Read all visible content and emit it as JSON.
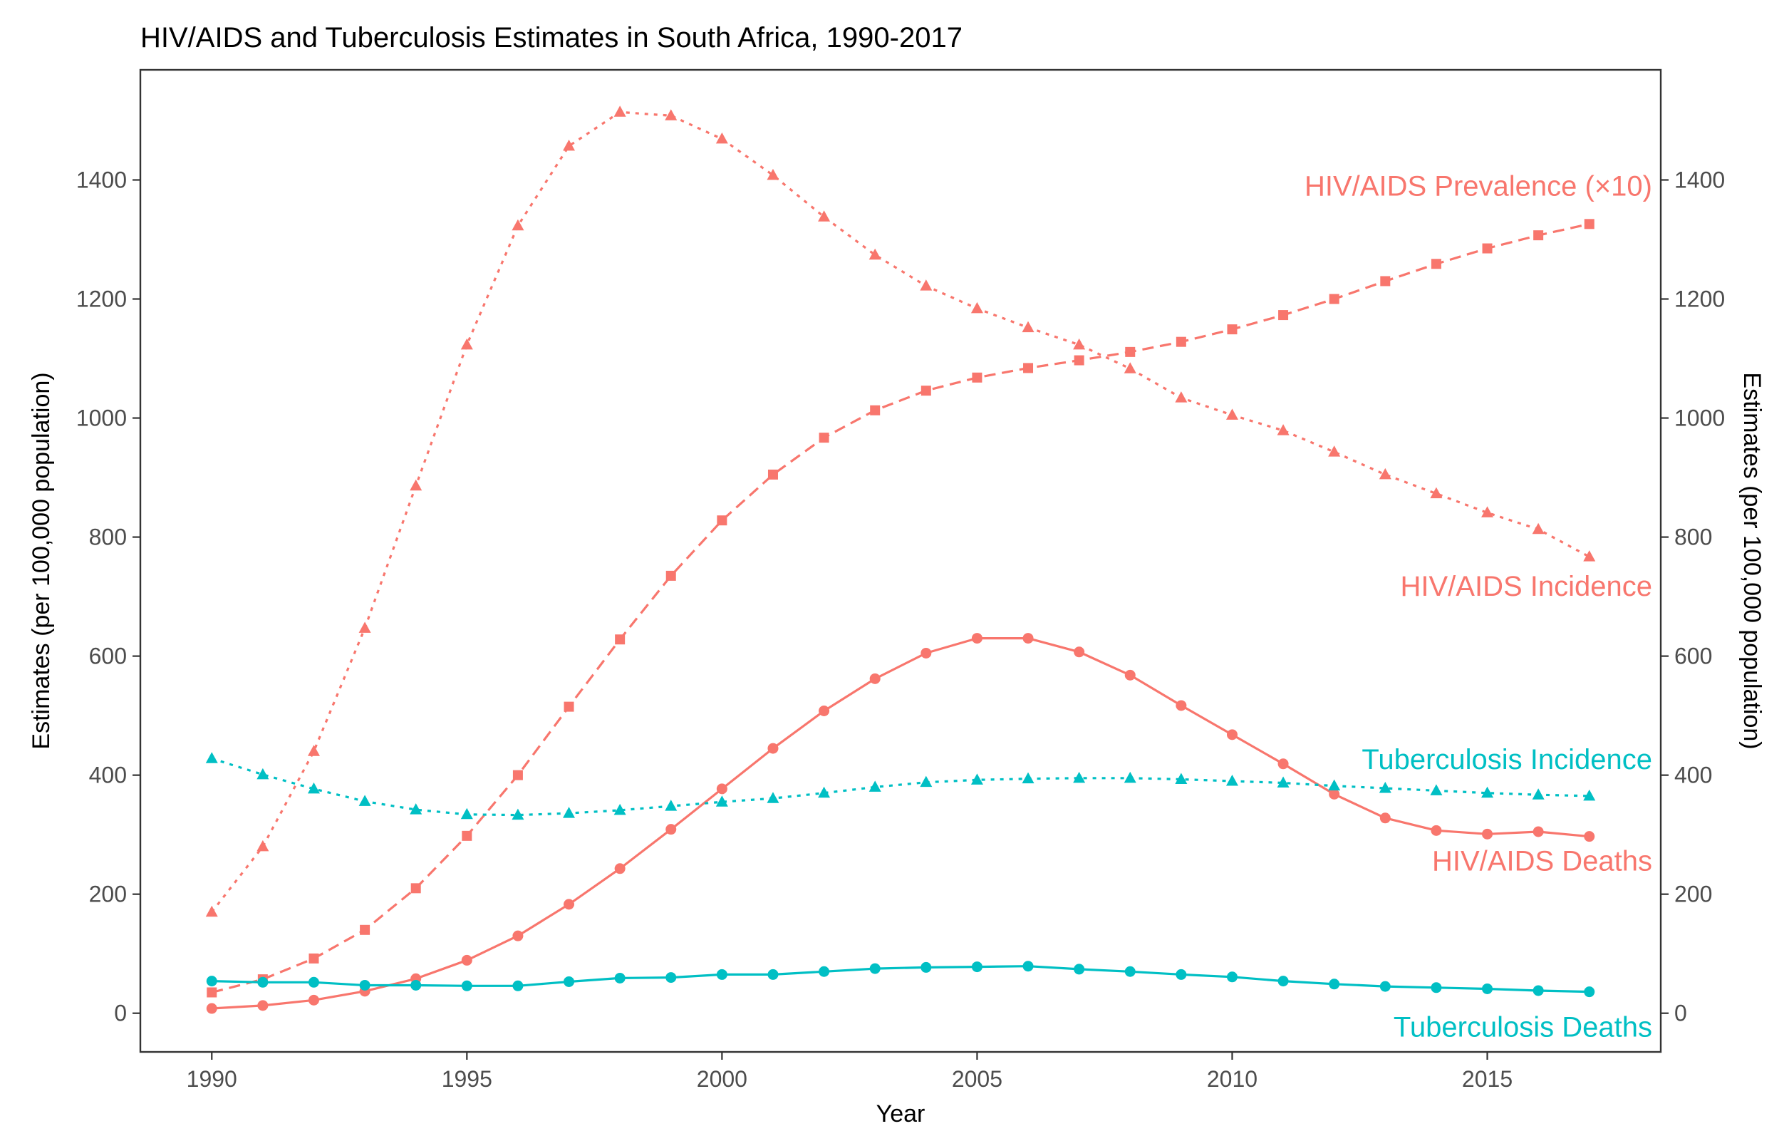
{
  "chart_data": {
    "type": "line",
    "title": "HIV/AIDS and Tuberculosis Estimates in South Africa, 1990-2017",
    "xlabel": "Year",
    "ylabel": "Estimates (per 100,000 population)",
    "ylabel_right": "Estimates (per 100,000 population)",
    "xlim": [
      1988.6,
      2018.4
    ],
    "ylim": [
      -65,
      1585
    ],
    "x_ticks": [
      1990,
      1995,
      2000,
      2005,
      2010,
      2015
    ],
    "y_ticks": [
      0,
      200,
      400,
      600,
      800,
      1000,
      1200,
      1400
    ],
    "x": [
      1990,
      1991,
      1992,
      1993,
      1994,
      1995,
      1996,
      1997,
      1998,
      1999,
      2000,
      2001,
      2002,
      2003,
      2004,
      2005,
      2006,
      2007,
      2008,
      2009,
      2010,
      2011,
      2012,
      2013,
      2014,
      2015,
      2016,
      2017
    ],
    "series": [
      {
        "name": "HIV/AIDS Incidence",
        "label": "HIV/AIDS Incidence",
        "color": "#F8766D",
        "line": "dotted",
        "marker": "triangle",
        "values": [
          170,
          280,
          440,
          647,
          886,
          1123,
          1323,
          1457,
          1514,
          1508,
          1469,
          1408,
          1338,
          1274,
          1222,
          1184,
          1152,
          1123,
          1083,
          1034,
          1005,
          979,
          943,
          905,
          873,
          841,
          813,
          767
        ]
      },
      {
        "name": "HIV/AIDS Prevalence (×10)",
        "label": "HIV/AIDS Prevalence (×10)",
        "color": "#F8766D",
        "line": "dashed",
        "marker": "square",
        "values": [
          35,
          57,
          92,
          140,
          210,
          298,
          400,
          515,
          628,
          735,
          828,
          905,
          967,
          1013,
          1046,
          1068,
          1084,
          1097,
          1111,
          1128,
          1149,
          1173,
          1200,
          1230,
          1259,
          1285,
          1307,
          1326
        ]
      },
      {
        "name": "HIV/AIDS Deaths",
        "label": "HIV/AIDS Deaths",
        "color": "#F8766D",
        "line": "solid",
        "marker": "circle",
        "values": [
          8,
          13,
          22,
          37,
          58,
          89,
          130,
          183,
          243,
          309,
          377,
          445,
          508,
          562,
          605,
          630,
          630,
          607,
          568,
          517,
          468,
          419,
          368,
          328,
          307,
          301,
          305,
          297
        ]
      },
      {
        "name": "Tuberculosis Incidence",
        "label": "Tuberculosis Incidence",
        "color": "#00BFC4",
        "line": "dotted",
        "marker": "triangle",
        "values": [
          428,
          401,
          377,
          356,
          342,
          334,
          333,
          336,
          341,
          348,
          355,
          361,
          370,
          380,
          388,
          392,
          394,
          395,
          395,
          393,
          390,
          387,
          382,
          378,
          374,
          370,
          367,
          365
        ]
      },
      {
        "name": "Tuberculosis Deaths",
        "label": "Tuberculosis Deaths",
        "color": "#00BFC4",
        "line": "solid",
        "marker": "circle",
        "values": [
          54,
          52,
          52,
          47,
          47,
          46,
          46,
          53,
          59,
          60,
          65,
          65,
          70,
          75,
          77,
          78,
          79,
          74,
          70,
          65,
          61,
          54,
          49,
          45,
          43,
          41,
          38,
          36
        ]
      }
    ]
  }
}
